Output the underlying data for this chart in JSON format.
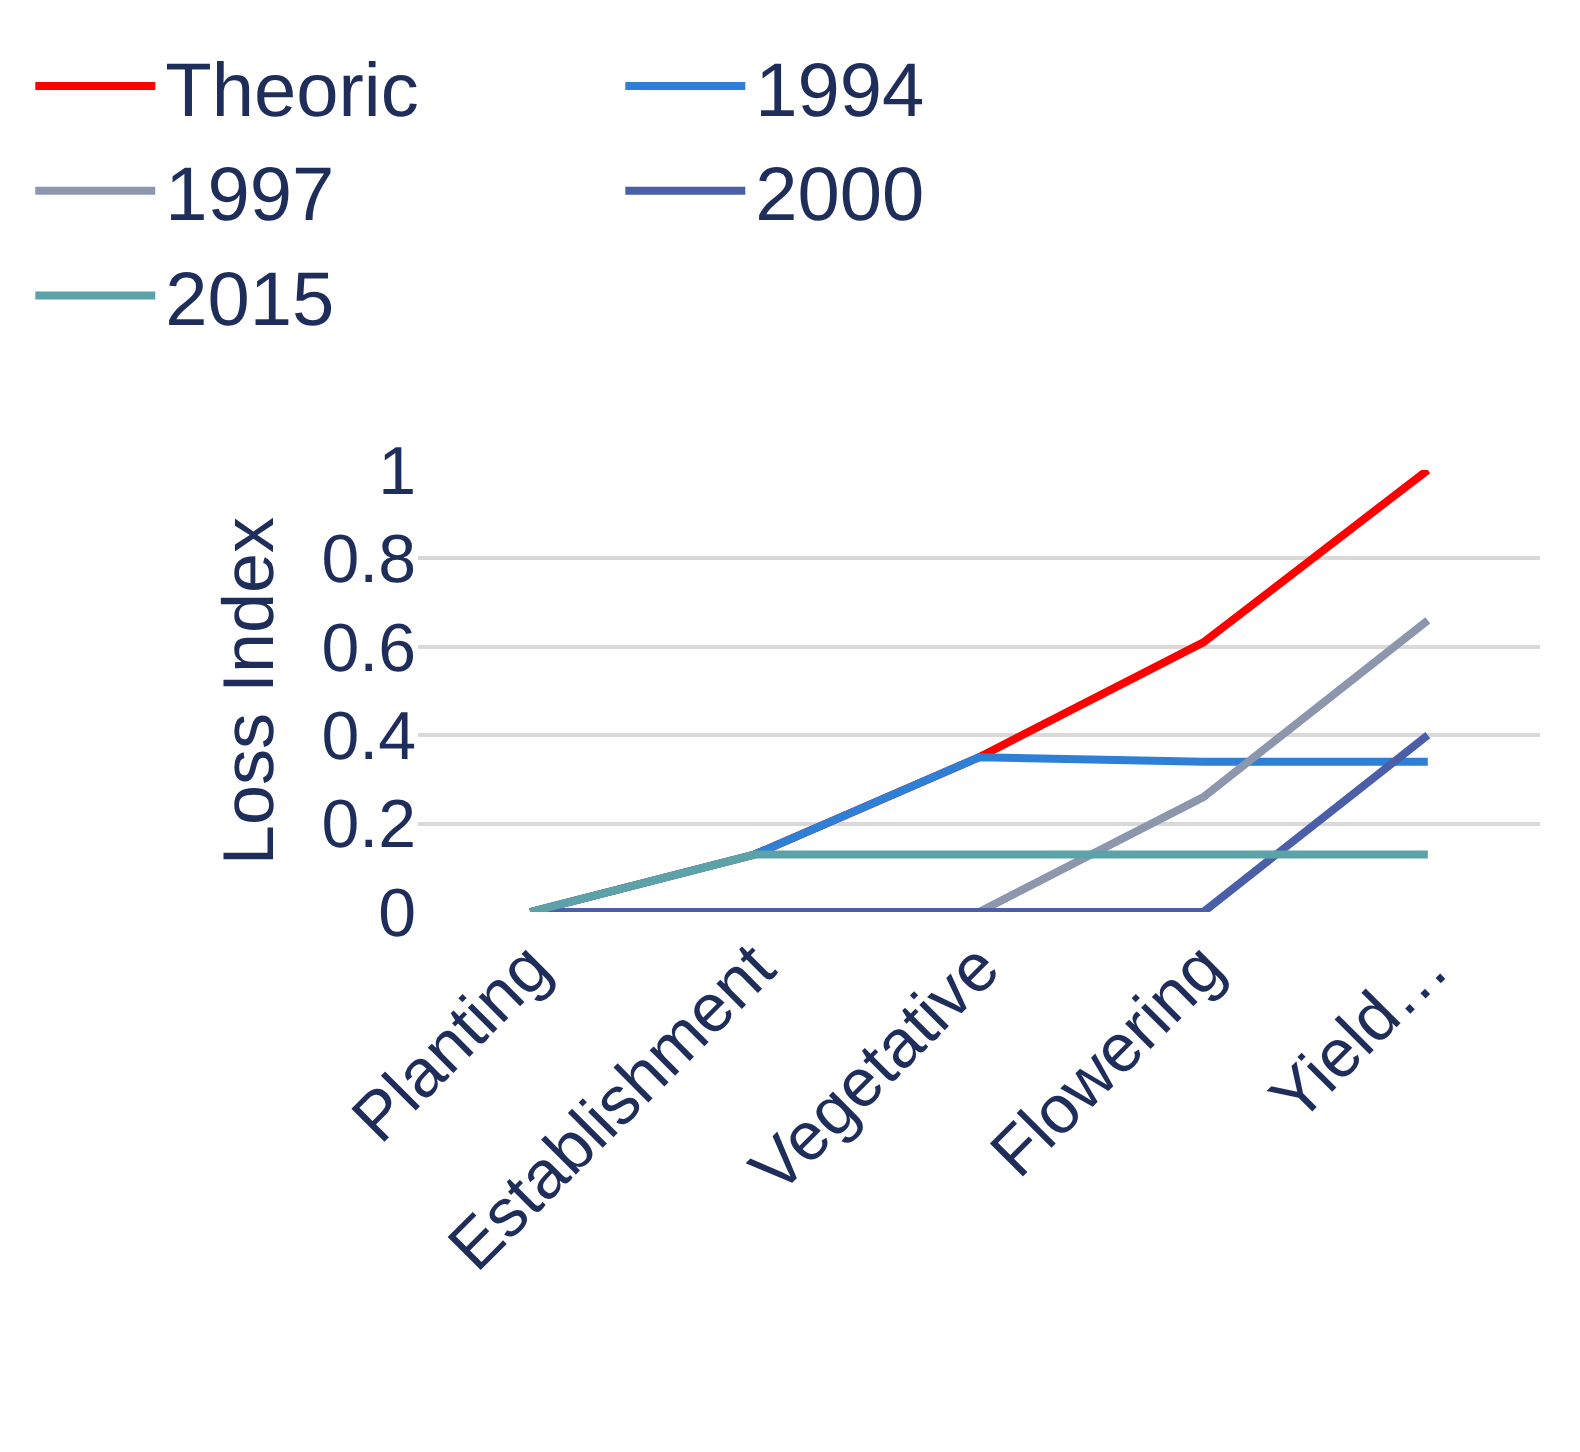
{
  "chart_data": {
    "type": "line",
    "ylabel": "Loss Index",
    "categories": [
      "Planting",
      "Establishment",
      "Vegetative",
      "Flowering",
      "Yield…"
    ],
    "series": [
      {
        "name": "Theoric",
        "color": "#ff0000",
        "values": [
          0,
          0.13,
          0.35,
          0.61,
          1
        ]
      },
      {
        "name": "1994",
        "color": "#2e7fd6",
        "values": [
          0,
          0.13,
          0.35,
          0.34,
          0.34
        ]
      },
      {
        "name": "1997",
        "color": "#8c97ad",
        "values": [
          0,
          0,
          0,
          0.26,
          0.66
        ]
      },
      {
        "name": "2000",
        "color": "#4a5fa8",
        "values": [
          0,
          0,
          0,
          0,
          0.4
        ]
      },
      {
        "name": "2015",
        "color": "#5ba3a8",
        "values": [
          0,
          0.13,
          0.13,
          0.13,
          0.13
        ]
      }
    ],
    "ylim": [
      0,
      1
    ],
    "yticks": [
      0,
      0.2,
      0.4,
      0.6,
      0.8,
      {
        "value": 1,
        "label": "1"
      }
    ],
    "grid": "y",
    "legend": "top",
    "marker": "none",
    "line_style": "solid"
  }
}
